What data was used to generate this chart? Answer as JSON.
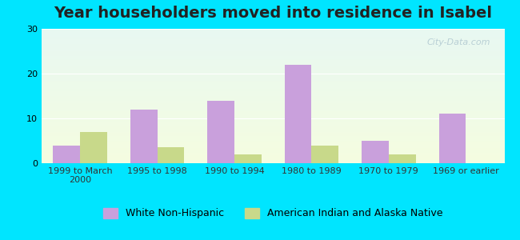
{
  "title": "Year householders moved into residence in Isabel",
  "categories": [
    "1999 to March\n2000",
    "1995 to 1998",
    "1990 to 1994",
    "1980 to 1989",
    "1970 to 1979",
    "1969 or earlier"
  ],
  "white_values": [
    4,
    12,
    14,
    22,
    5,
    11
  ],
  "native_values": [
    7,
    3.5,
    2,
    4,
    2,
    0
  ],
  "white_color": "#c9a0dc",
  "native_color": "#c8d98a",
  "background_outer": "#00e5ff",
  "background_plot_top": "#e8f8f2",
  "background_plot_bottom": "#f5fde0",
  "ylim": [
    0,
    30
  ],
  "yticks": [
    0,
    10,
    20,
    30
  ],
  "bar_width": 0.35,
  "title_fontsize": 14,
  "tick_fontsize": 8,
  "legend_fontsize": 9,
  "watermark_text": "City-Data.com",
  "watermark_color": "#b0c8d0",
  "white_label": "White Non-Hispanic",
  "native_label": "American Indian and Alaska Native"
}
